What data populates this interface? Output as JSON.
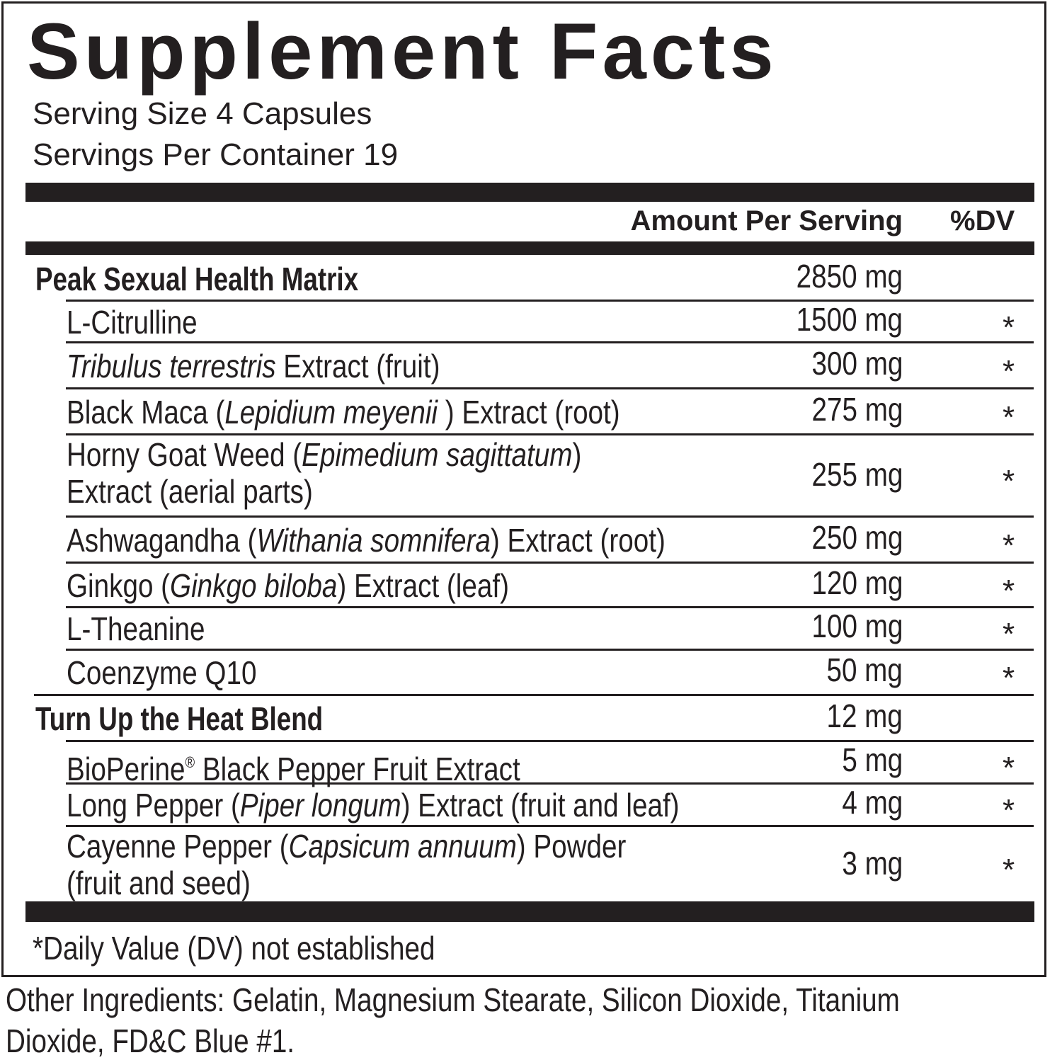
{
  "title": "Supplement Facts",
  "serving_size": "Serving Size 4 Capsules",
  "servings_per_container": "Servings Per Container 19",
  "header": {
    "amount": "Amount Per Serving",
    "dv": "%DV"
  },
  "rows": [
    {
      "name": [
        {
          "text": "Peak Sexual Health Matrix"
        }
      ],
      "amount": "2850 mg",
      "dv": "",
      "bold": true
    },
    {
      "name": [
        {
          "text": "L-Citrulline"
        }
      ],
      "amount": "1500 mg",
      "dv": "*"
    },
    {
      "name": [
        {
          "text": "Tribulus terrestris",
          "italic": true
        },
        {
          "text": " Extract (fruit)"
        }
      ],
      "amount": "300 mg",
      "dv": "*"
    },
    {
      "name": [
        {
          "text": "Black Maca ("
        },
        {
          "text": "Lepidium meyenii",
          "italic": true
        },
        {
          "text": " ) Extract (root)"
        }
      ],
      "amount": "275 mg",
      "dv": "*"
    },
    {
      "name": [
        {
          "text": "Horny Goat Weed ("
        },
        {
          "text": "Epimedium sagittatum",
          "italic": true
        },
        {
          "text": ")"
        }
      ],
      "name2": "Extract (aerial parts)",
      "amount": "255 mg",
      "dv": "*"
    },
    {
      "name": [
        {
          "text": "Ashwagandha ("
        },
        {
          "text": "Withania somnifera",
          "italic": true
        },
        {
          "text": ") Extract (root)"
        }
      ],
      "amount": "250 mg",
      "dv": "*"
    },
    {
      "name": [
        {
          "text": "Ginkgo ("
        },
        {
          "text": "Ginkgo biloba",
          "italic": true
        },
        {
          "text": ") Extract (leaf)"
        }
      ],
      "amount": "120 mg",
      "dv": "*"
    },
    {
      "name": [
        {
          "text": "L-Theanine"
        }
      ],
      "amount": "100 mg",
      "dv": "*"
    },
    {
      "name": [
        {
          "text": "Coenzyme Q10"
        }
      ],
      "amount": "50 mg",
      "dv": "*"
    },
    {
      "name": [
        {
          "text": "Turn Up the Heat Blend"
        }
      ],
      "amount": "12 mg",
      "dv": "",
      "bold": true
    },
    {
      "name": [
        {
          "text": "BioPerine"
        },
        {
          "text": "®",
          "sup": true
        },
        {
          "text": " Black Pepper Fruit Extract"
        }
      ],
      "amount": "5 mg",
      "dv": "*"
    },
    {
      "name": [
        {
          "text": "Long Pepper ("
        },
        {
          "text": "Piper longum",
          "italic": true
        },
        {
          "text": ") Extract (fruit and leaf)"
        }
      ],
      "amount": "4 mg",
      "dv": "*"
    },
    {
      "name": [
        {
          "text": "Cayenne Pepper ("
        },
        {
          "text": "Capsicum annuum",
          "italic": true
        },
        {
          "text": ") Powder"
        }
      ],
      "name2": "(fruit and seed)",
      "amount": "3 mg",
      "dv": "*"
    }
  ],
  "footnote": "*Daily Value (DV) not established",
  "other_ingredients": {
    "line1": "Other Ingredients: Gelatin, Magnesium Stearate, Silicon Dioxide, Titanium",
    "line2": "Dioxide, FD&C Blue #1."
  }
}
